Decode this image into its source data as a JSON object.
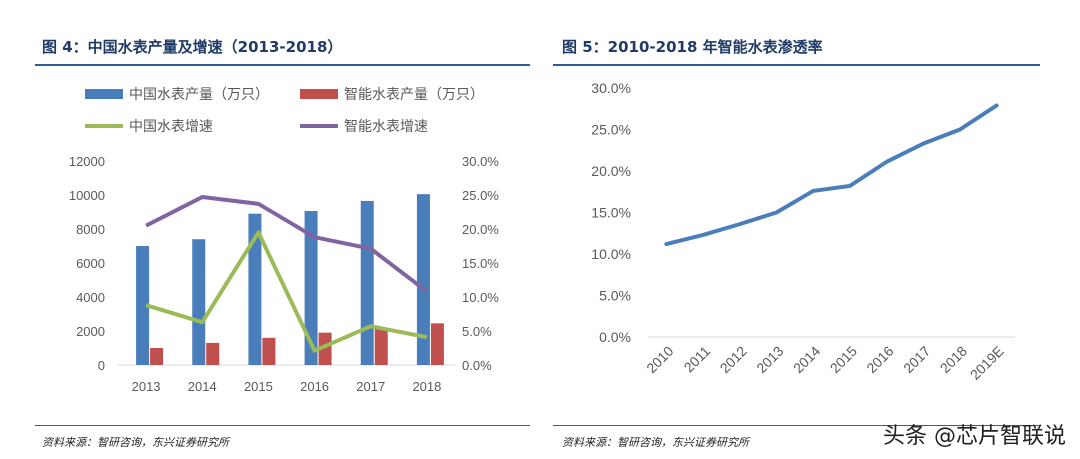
{
  "left": {
    "title": "图 4：中国水表产量及增速（2013-2018）",
    "source": "资料来源：智研咨询，东兴证券研究所"
  },
  "right": {
    "title": "图 5：2010-2018 年智能水表渗透率",
    "source": "资料来源：智研咨询，东兴证券研究所"
  },
  "watermark": "头条 @芯片智联说",
  "chart_data": [
    {
      "type": "bar",
      "categories": [
        "2013",
        "2014",
        "2015",
        "2016",
        "2017",
        "2018"
      ],
      "series": [
        {
          "name": "中国水表产量（万只）",
          "kind": "bar",
          "axis": "left",
          "color": "#4a7ebb",
          "values": [
            7000,
            7400,
            8900,
            9060,
            9650,
            10050
          ]
        },
        {
          "name": "智能水表产量（万只）",
          "kind": "bar",
          "axis": "left",
          "color": "#c0504d",
          "values": [
            1000,
            1300,
            1600,
            1900,
            2200,
            2450
          ]
        },
        {
          "name": "中国水表增速",
          "kind": "line",
          "axis": "right",
          "color": "#9bbb59",
          "values": [
            8.8,
            6.3,
            19.5,
            2.1,
            5.7,
            4.1
          ]
        },
        {
          "name": "智能水表增速",
          "kind": "line",
          "axis": "right",
          "color": "#8064a2",
          "values": [
            20.5,
            24.7,
            23.7,
            18.8,
            17.1,
            10.8
          ]
        }
      ],
      "ylim": [
        0,
        12000
      ],
      "yticks": [
        "0",
        "2000",
        "4000",
        "6000",
        "8000",
        "10000",
        "12000"
      ],
      "y2lim": [
        0,
        30
      ],
      "y2ticks": [
        "0.0%",
        "5.0%",
        "10.0%",
        "15.0%",
        "20.0%",
        "25.0%",
        "30.0%"
      ],
      "legend": "top"
    },
    {
      "type": "line",
      "categories": [
        "2010",
        "2011",
        "2012",
        "2013",
        "2014",
        "2015",
        "2016",
        "2017",
        "2018",
        "2019E"
      ],
      "series": [
        {
          "name": "智能水表渗透率",
          "color": "#4a7ebb",
          "values": [
            11.2,
            12.3,
            13.6,
            15.0,
            17.6,
            18.2,
            21.1,
            23.3,
            25.0,
            27.9
          ]
        }
      ],
      "ylim": [
        0,
        30
      ],
      "yticks": [
        "0.0%",
        "5.0%",
        "10.0%",
        "15.0%",
        "20.0%",
        "25.0%",
        "30.0%"
      ]
    }
  ]
}
